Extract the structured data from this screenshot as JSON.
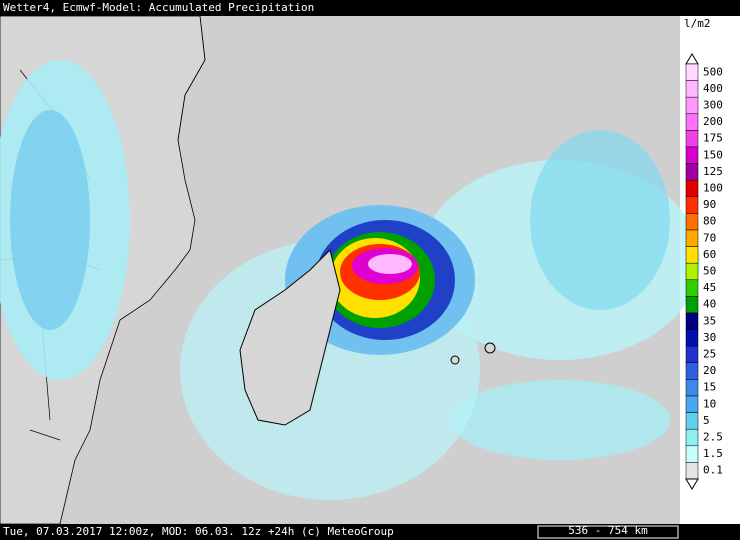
{
  "header": {
    "title": "Wetter4, Ecmwf-Model: Accumulated Precipitation"
  },
  "legend": {
    "unit": "l/m2",
    "items": [
      {
        "label": "500",
        "color": "#ffd8ff"
      },
      {
        "label": "400",
        "color": "#ffb8ff"
      },
      {
        "label": "300",
        "color": "#ff98ff"
      },
      {
        "label": "200",
        "color": "#ff70f8"
      },
      {
        "label": "175",
        "color": "#f040e8"
      },
      {
        "label": "150",
        "color": "#d800d0"
      },
      {
        "label": "125",
        "color": "#a000a0"
      },
      {
        "label": "100",
        "color": "#e00000"
      },
      {
        "label": "90",
        "color": "#ff3000"
      },
      {
        "label": "80",
        "color": "#ff7000"
      },
      {
        "label": "70",
        "color": "#ffa800"
      },
      {
        "label": "60",
        "color": "#ffe000"
      },
      {
        "label": "50",
        "color": "#b0f000"
      },
      {
        "label": "45",
        "color": "#30d000"
      },
      {
        "label": "40",
        "color": "#00a000"
      },
      {
        "label": "35",
        "color": "#000080"
      },
      {
        "label": "30",
        "color": "#0010b0"
      },
      {
        "label": "25",
        "color": "#2030d0"
      },
      {
        "label": "20",
        "color": "#3060e0"
      },
      {
        "label": "15",
        "color": "#4088e8"
      },
      {
        "label": "10",
        "color": "#48a8f0"
      },
      {
        "label": "5",
        "color": "#60d0f0"
      },
      {
        "label": "2.5",
        "color": "#90f0f0"
      },
      {
        "label": "1.5",
        "color": "#c8fcfc"
      },
      {
        "label": "0.1",
        "color": "#e4e4e4"
      }
    ]
  },
  "footer": {
    "info": "Tue, 07.03.2017 12:00z, MOD: 06.03. 12z +24h (c) MeteoGroup",
    "scale": "536 - 754 km"
  }
}
